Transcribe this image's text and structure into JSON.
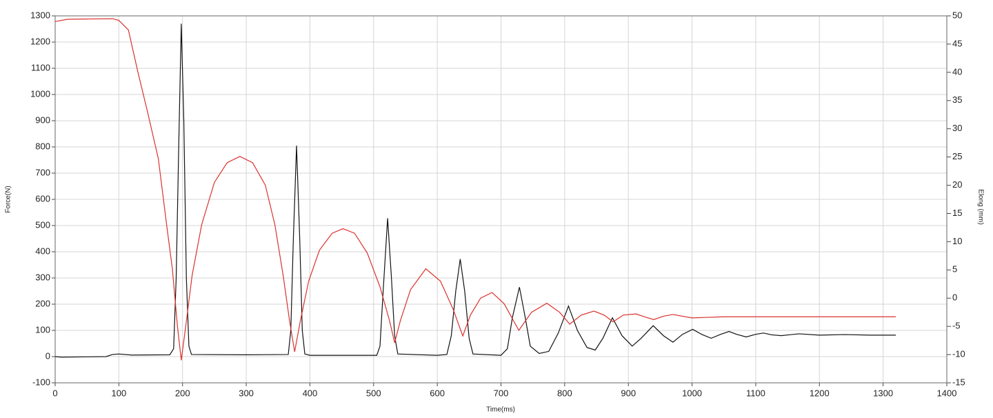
{
  "chart_data": {
    "type": "line",
    "x_label": "Time(ms)",
    "y_label": "Force(N)",
    "y2_label": "Elong (mm)",
    "xlim": [
      0,
      1400
    ],
    "xticks": [
      0,
      100,
      200,
      300,
      400,
      500,
      600,
      700,
      800,
      900,
      1000,
      1100,
      1200,
      1300,
      1400
    ],
    "ylim": [
      -100,
      1300
    ],
    "yticks": [
      -100,
      0,
      100,
      200,
      300,
      400,
      500,
      600,
      700,
      800,
      900,
      1000,
      1100,
      1200,
      1300
    ],
    "y2lim": [
      -15,
      50
    ],
    "y2ticks": [
      -15,
      -10,
      -5,
      0,
      5,
      10,
      15,
      20,
      25,
      30,
      35,
      40,
      45,
      50
    ],
    "grid": true,
    "series": [
      {
        "color": "#111111",
        "x": [
          0,
          10,
          80,
          90,
          100,
          120,
          180,
          186,
          190,
          194,
          198,
          202,
          206,
          210,
          214,
          300,
          366,
          370,
          374,
          379,
          384,
          388,
          392,
          400,
          505,
          510,
          515,
          522,
          528,
          533,
          538,
          600,
          615,
          622,
          629,
          636,
          643,
          650,
          656,
          700,
          710,
          718,
          729,
          738,
          746,
          760,
          775,
          790,
          806,
          820,
          835,
          848,
          860,
          875,
          890,
          906,
          920,
          939,
          955,
          970,
          985,
          1001,
          1015,
          1030,
          1045,
          1058,
          1070,
          1085,
          1100,
          1112,
          1125,
          1140,
          1168,
          1200,
          1240,
          1280,
          1320
        ],
        "values": [
          0,
          -2,
          0,
          8,
          10,
          6,
          7,
          30,
          300,
          800,
          1270,
          900,
          300,
          40,
          8,
          7,
          8,
          100,
          450,
          805,
          450,
          100,
          10,
          5,
          5,
          40,
          250,
          528,
          300,
          80,
          10,
          5,
          8,
          80,
          250,
          372,
          250,
          70,
          10,
          5,
          30,
          150,
          265,
          150,
          40,
          12,
          20,
          90,
          193,
          100,
          35,
          25,
          70,
          148,
          80,
          40,
          70,
          118,
          80,
          55,
          85,
          104,
          85,
          70,
          85,
          96,
          85,
          75,
          85,
          90,
          83,
          80,
          87,
          82,
          84,
          82,
          82
        ]
      },
      {
        "color": "#d9312d",
        "axis": "y2",
        "x": [
          0,
          20,
          90,
          100,
          115,
          130,
          145,
          162,
          175,
          184,
          192,
          198,
          205,
          215,
          230,
          250,
          270,
          290,
          310,
          330,
          345,
          358,
          368,
          376,
          385,
          398,
          415,
          435,
          452,
          470,
          490,
          510,
          525,
          533,
          542,
          558,
          582,
          605,
          625,
          640,
          652,
          668,
          686,
          705,
          728,
          748,
          772,
          792,
          808,
          826,
          846,
          862,
          876,
          892,
          912,
          925,
          940,
          955,
          970,
          1000,
          1050,
          1100,
          1200,
          1320
        ],
        "values": [
          49.0,
          49.4,
          49.5,
          49.2,
          47.5,
          40,
          33,
          24.7,
          13,
          5.2,
          -5,
          -11,
          -5,
          4,
          13,
          20.5,
          24,
          25.1,
          24,
          20,
          13,
          4,
          -4,
          -9.5,
          -4,
          3,
          8.5,
          11.5,
          12.3,
          11.5,
          8,
          2,
          -4,
          -7.9,
          -4,
          1.5,
          5.2,
          3,
          -2,
          -6.7,
          -3,
          0,
          1.0,
          -1,
          -5.7,
          -2.5,
          -0.9,
          -2.5,
          -4.6,
          -3,
          -2.3,
          -3,
          -4.2,
          -3,
          -2.8,
          -3.3,
          -3.8,
          -3.2,
          -2.9,
          -3.5,
          -3.3,
          -3.3,
          -3.3,
          -3.3
        ]
      }
    ]
  }
}
